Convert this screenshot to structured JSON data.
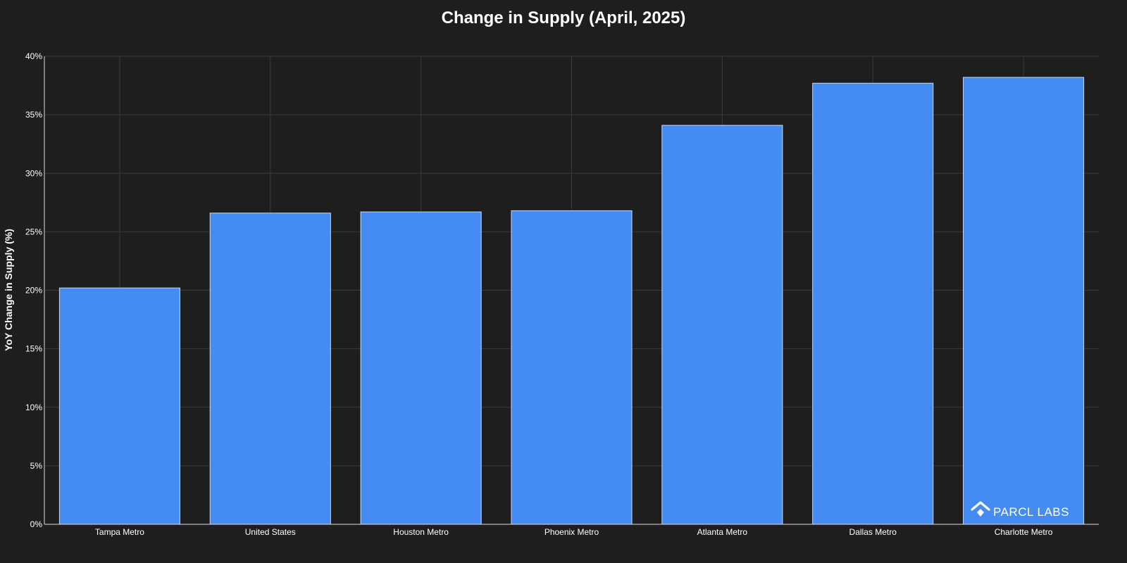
{
  "chart_data": {
    "type": "bar",
    "title": "Change in Supply (April, 2025)",
    "xlabel": "",
    "ylabel": "YoY Change in Supply (%)",
    "categories": [
      "Tampa Metro",
      "United States",
      "Houston Metro",
      "Phoenix Metro",
      "Atlanta Metro",
      "Dallas Metro",
      "Charlotte Metro"
    ],
    "values": [
      20.2,
      26.6,
      26.7,
      26.8,
      34.1,
      37.7,
      38.2
    ],
    "ylim": [
      0,
      40
    ],
    "yticks": [
      0,
      5,
      10,
      15,
      20,
      25,
      30,
      35,
      40
    ],
    "ytick_suffix": "%",
    "bar_color": "#458cf2",
    "background_color": "#1e1e1e",
    "grid": true,
    "legend": "none"
  },
  "branding": {
    "logo_text": "PARCL LABS",
    "logo_icon": "parcl-labs-logo-icon"
  }
}
